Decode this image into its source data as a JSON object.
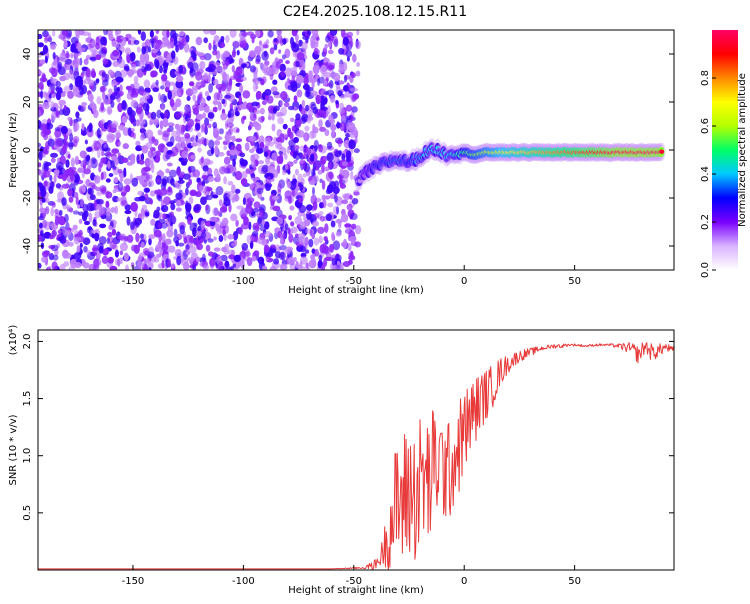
{
  "title": "C2E4.2025.108.12.15.R11",
  "chart_data": [
    {
      "type": "heatmap",
      "xlabel": "Height of straight line (km)",
      "ylabel": "Frequency (Hz)",
      "xlim": [
        -193,
        95
      ],
      "ylim": [
        -50,
        50
      ],
      "x_ticks": [
        -150,
        -100,
        -50,
        0,
        50
      ],
      "y_ticks": [
        -40,
        -20,
        0,
        20,
        40
      ],
      "x_tick_labels": [
        "-150",
        "-100",
        "-50",
        "0",
        "50"
      ],
      "y_tick_labels": [
        "-40",
        "-20",
        "0",
        "20",
        "40"
      ],
      "colorbar": {
        "label": "Normalized spectral amplitude",
        "range": [
          0,
          1
        ],
        "ticks": [
          0.0,
          0.2,
          0.4,
          0.6,
          0.8
        ],
        "tick_labels": [
          "0.0",
          "0.2",
          "0.4",
          "0.6",
          "0.8"
        ],
        "colors": [
          "#ffffff",
          "#d9b3ff",
          "#7a00ff",
          "#0000ff",
          "#00c8ff",
          "#00ff66",
          "#b4ff00",
          "#ffff00",
          "#ff8800",
          "#ff0000",
          "#ff0066"
        ]
      },
      "noise_region": {
        "x_range": [
          -193,
          -48
        ],
        "freq_range": [
          -50,
          50
        ],
        "amplitude": 0.1
      },
      "signal_ridge": [
        {
          "x": -48,
          "freq": -13,
          "amplitude": 0.12
        },
        {
          "x": -44,
          "freq": -9,
          "amplitude": 0.2
        },
        {
          "x": -40,
          "freq": -7,
          "amplitude": 0.3
        },
        {
          "x": -35,
          "freq": -5,
          "amplitude": 0.32
        },
        {
          "x": -30,
          "freq": -4,
          "amplitude": 0.35
        },
        {
          "x": -25,
          "freq": -5,
          "amplitude": 0.3
        },
        {
          "x": -20,
          "freq": -3,
          "amplitude": 0.38
        },
        {
          "x": -16,
          "freq": 0,
          "amplitude": 0.4
        },
        {
          "x": -12,
          "freq": 0,
          "amplitude": 0.42
        },
        {
          "x": -8,
          "freq": -2,
          "amplitude": 0.4
        },
        {
          "x": -4,
          "freq": -1,
          "amplitude": 0.45
        },
        {
          "x": 0,
          "freq": -1,
          "amplitude": 0.5
        },
        {
          "x": 5,
          "freq": -2,
          "amplitude": 0.55
        },
        {
          "x": 10,
          "freq": -1,
          "amplitude": 0.6
        },
        {
          "x": 15,
          "freq": -1,
          "amplitude": 0.65
        },
        {
          "x": 20,
          "freq": -1,
          "amplitude": 0.7
        },
        {
          "x": 25,
          "freq": -1,
          "amplitude": 0.72
        },
        {
          "x": 30,
          "freq": -1,
          "amplitude": 0.75
        },
        {
          "x": 40,
          "freq": -1,
          "amplitude": 0.8
        },
        {
          "x": 50,
          "freq": -1,
          "amplitude": 0.85
        },
        {
          "x": 60,
          "freq": -1,
          "amplitude": 0.9
        },
        {
          "x": 70,
          "freq": -1,
          "amplitude": 0.95
        },
        {
          "x": 80,
          "freq": -1,
          "amplitude": 0.95
        },
        {
          "x": 90,
          "freq": -1,
          "amplitude": 0.95
        }
      ]
    },
    {
      "type": "line",
      "xlabel": "Height of straight line (km)",
      "ylabel": "SNR (10 * v/v)",
      "y_multiplier": "(x10⁴)",
      "xlim": [
        -193,
        95
      ],
      "ylim": [
        0,
        2.1
      ],
      "x_ticks": [
        -150,
        -100,
        -50,
        0,
        50
      ],
      "y_ticks": [
        0.5,
        1.0,
        1.5,
        2.0
      ],
      "x_tick_labels": [
        "-150",
        "-100",
        "-50",
        "0",
        "50"
      ],
      "y_tick_labels": [
        "0.5",
        "1.0",
        "1.5",
        "2.0"
      ],
      "color": "#e83a3a",
      "series": [
        {
          "x": [
            -193,
            -150,
            -100,
            -60,
            -45,
            -40,
            -37,
            -34,
            -31,
            -28,
            -25,
            -22,
            -19,
            -16,
            -13,
            -10,
            -7,
            -4,
            -1,
            2,
            5,
            8,
            11,
            14,
            17,
            20,
            23,
            26,
            29,
            32,
            35,
            38,
            41,
            44,
            47,
            50,
            55,
            60,
            65,
            70,
            73,
            76,
            79,
            82,
            85,
            88,
            91,
            95
          ],
          "y": [
            0.01,
            0.01,
            0.01,
            0.01,
            0.02,
            0.05,
            0.15,
            0.35,
            0.55,
            0.6,
            0.7,
            0.65,
            0.8,
            0.75,
            0.95,
            0.9,
            0.85,
            1.0,
            1.15,
            1.3,
            1.4,
            1.5,
            1.55,
            1.65,
            1.75,
            1.8,
            1.85,
            1.88,
            1.9,
            1.92,
            1.94,
            1.95,
            1.96,
            1.96,
            1.97,
            1.97,
            1.96,
            1.97,
            1.97,
            1.96,
            1.95,
            1.93,
            1.88,
            1.96,
            1.9,
            1.92,
            1.95,
            1.92
          ],
          "spread": [
            0,
            0,
            0,
            0,
            0.01,
            0.05,
            0.12,
            0.35,
            0.55,
            0.6,
            0.65,
            0.6,
            0.65,
            0.6,
            0.55,
            0.5,
            0.45,
            0.45,
            0.4,
            0.35,
            0.3,
            0.25,
            0.22,
            0.18,
            0.12,
            0.08,
            0.06,
            0.05,
            0.04,
            0.03,
            0.02,
            0.02,
            0.02,
            0.02,
            0.01,
            0.01,
            0.01,
            0.01,
            0.01,
            0.02,
            0.04,
            0.06,
            0.08,
            0.06,
            0.08,
            0.06,
            0.04,
            0.03
          ]
        }
      ]
    }
  ]
}
